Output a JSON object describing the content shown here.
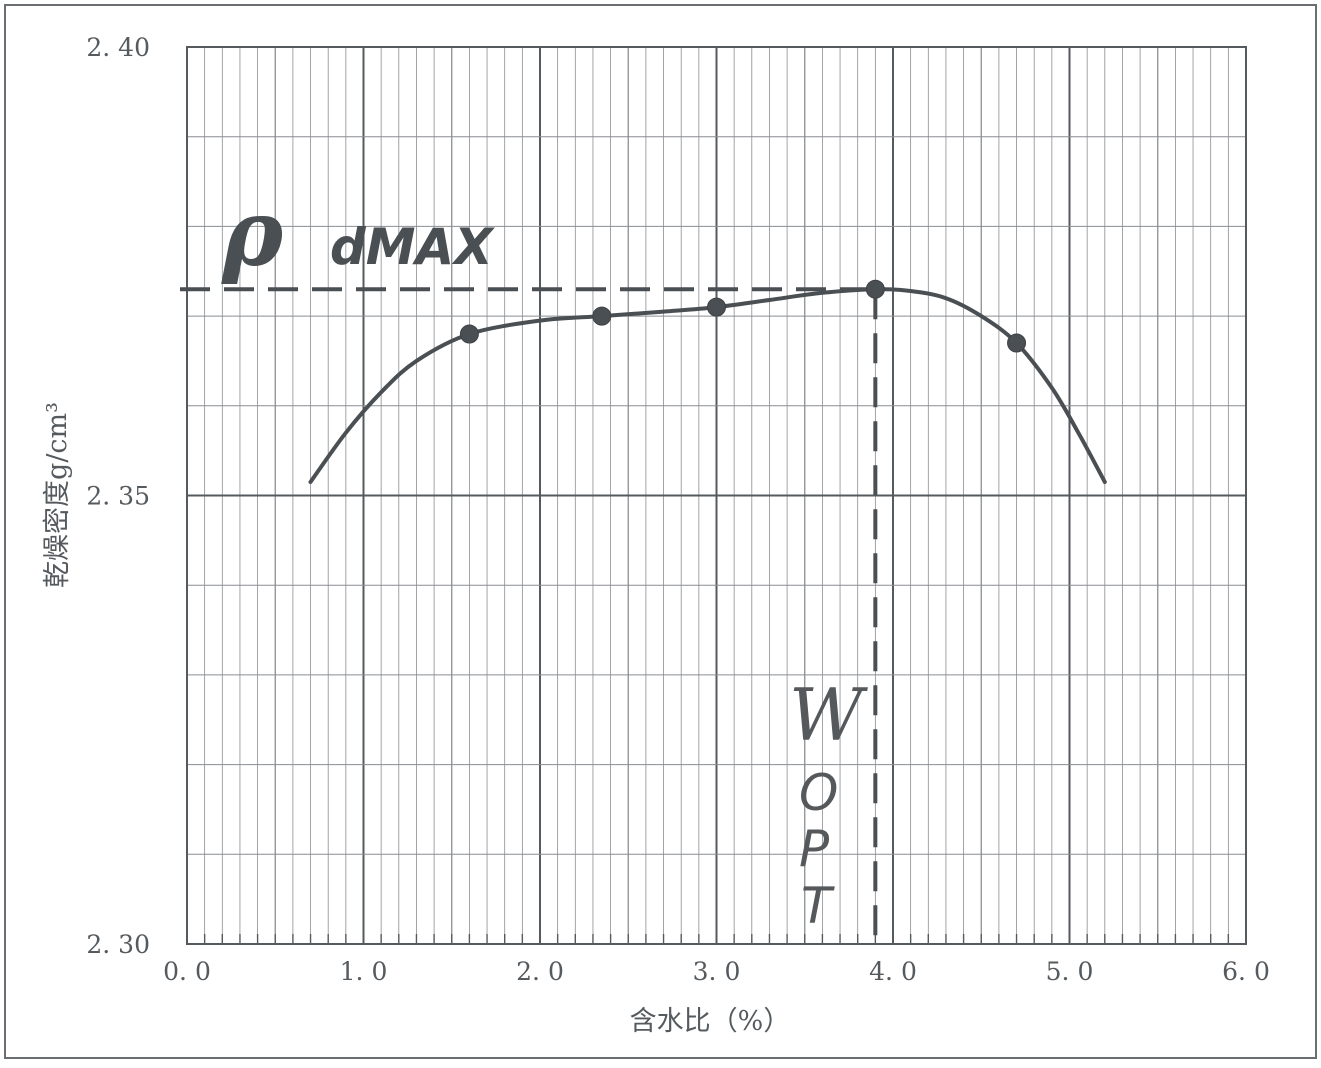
{
  "chart_data": {
    "type": "scatter",
    "title": "",
    "xlabel": "含水比（%）",
    "ylabel": "乾燥密度g/cm³",
    "xlim": [
      0.0,
      6.0
    ],
    "ylim": [
      2.3,
      2.4
    ],
    "x_ticks": [
      "0.0",
      "1.0",
      "2.0",
      "3.0",
      "4.0",
      "5.0",
      "6.0"
    ],
    "y_ticks": [
      "2.30",
      "2.35",
      "2.40"
    ],
    "y_tick_labels": [
      "2. 30",
      "2. 35",
      "2. 40"
    ],
    "x_tick_labels": [
      "0. 0",
      "1. 0",
      "2. 0",
      "3. 0",
      "4. 0",
      "5. 0",
      "6. 0"
    ],
    "grid": true,
    "legend": "none",
    "series": [
      {
        "kind": "points",
        "x": [
          1.6,
          2.35,
          3.0,
          3.9,
          4.7
        ],
        "y": [
          2.368,
          2.37,
          2.371,
          2.373,
          2.367
        ]
      },
      {
        "kind": "fitted-curve",
        "x": [
          0.7,
          0.9,
          1.1,
          1.3,
          1.6,
          2.0,
          2.35,
          2.7,
          3.0,
          3.3,
          3.6,
          3.9,
          4.1,
          4.3,
          4.5,
          4.7,
          4.9,
          5.05,
          5.2
        ],
        "y": [
          2.3515,
          2.357,
          2.3615,
          2.365,
          2.368,
          2.3695,
          2.37,
          2.3705,
          2.371,
          2.3718,
          2.3726,
          2.373,
          2.3728,
          2.372,
          2.37,
          2.367,
          2.362,
          2.357,
          2.3515
        ]
      }
    ],
    "annotations": {
      "rho_symbol": "ρ",
      "rho_subscript": "dMAX",
      "rho_dmax_value": 2.373,
      "w_symbol": "W",
      "w_subscript_letters": [
        "O",
        "P",
        "T"
      ],
      "w_opt_value": 3.9
    },
    "colors": {
      "ink": "#4a4f53",
      "grid": "#777c80",
      "frame": "#555a5e"
    }
  }
}
